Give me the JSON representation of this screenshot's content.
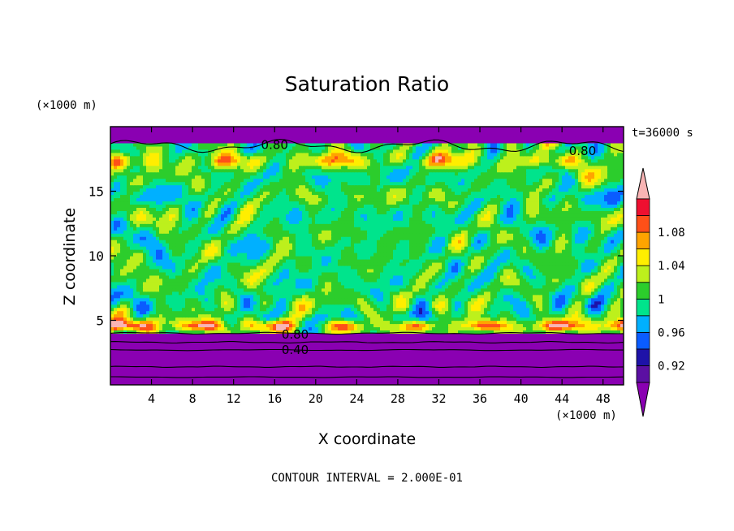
{
  "chart_data": {
    "type": "heatmap",
    "title": "Saturation Ratio",
    "xlabel": "X coordinate",
    "ylabel": "Z coordinate",
    "x_unit": "(×1000 m)",
    "y_unit": "(×1000 m)",
    "xlim": [
      0,
      50
    ],
    "ylim": [
      0,
      20
    ],
    "x_ticks": [
      4,
      8,
      12,
      16,
      20,
      24,
      28,
      32,
      36,
      40,
      44,
      48
    ],
    "y_ticks": [
      5,
      10,
      15
    ],
    "time_label": "t=36000 s",
    "footer": "CONTOUR INTERVAL = 2.000E-01",
    "colorbar": {
      "bounds": [
        0.9,
        0.92,
        0.94,
        0.96,
        0.98,
        1.0,
        1.02,
        1.04,
        1.06,
        1.08,
        1.1
      ],
      "labels": [
        "0.92",
        "0.96",
        "1",
        "1.04",
        "1.08"
      ],
      "colors": [
        "#5b0fa2",
        "#1e12a8",
        "#0a5cff",
        "#00b0ff",
        "#00e48c",
        "#2ccd2c",
        "#bdf01c",
        "#ffee00",
        "#ffa400",
        "#ff5018",
        "#ee1030"
      ],
      "under_color": "#8a00b2",
      "over_color": "#f8b4b4"
    },
    "contour_labels": [
      {
        "text": "0.80",
        "x": 16,
        "z": 18.6
      },
      {
        "text": "0.80",
        "x": 46,
        "z": 18.1
      },
      {
        "text": "0.80",
        "x": 18,
        "z": 3.9
      },
      {
        "text": "0.40",
        "x": 18,
        "z": 2.7
      }
    ],
    "regions": {
      "upper_dry_layer": {
        "z_range": [
          18.5,
          20
        ],
        "value": "< 0.90"
      },
      "lower_dry_layer": {
        "z_range": [
          0,
          4
        ],
        "value": "< 0.90"
      },
      "cloud_layer": {
        "z_range": [
          4,
          18.5
        ],
        "value_range": [
          0.9,
          1.1
        ]
      }
    }
  }
}
